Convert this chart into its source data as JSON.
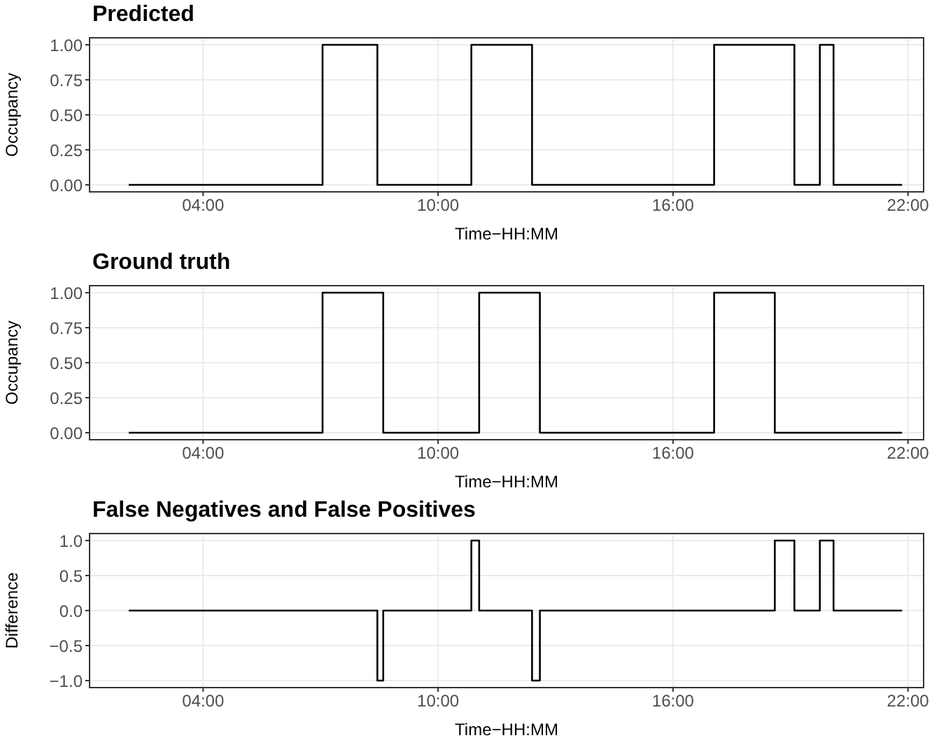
{
  "chart_data": [
    {
      "type": "step",
      "title": "Predicted",
      "xlabel": "Time−HH:MM",
      "ylabel": "Occupancy",
      "x": [
        2.1,
        7.05,
        8.45,
        10.85,
        12.4,
        17.05,
        19.1,
        19.75,
        20.1,
        21.85
      ],
      "values": [
        0,
        1,
        0,
        1,
        0,
        1,
        0,
        1,
        0,
        0
      ],
      "color": "#000000",
      "xlim": [
        1.1,
        22.4
      ],
      "xticks": [
        {
          "value": 4,
          "label": "04:00"
        },
        {
          "value": 10,
          "label": "10:00"
        },
        {
          "value": 16,
          "label": "16:00"
        },
        {
          "value": 22,
          "label": "22:00"
        }
      ],
      "ylim": [
        -0.05,
        1.05
      ],
      "yticks": [
        {
          "value": 0,
          "label": "0.00"
        },
        {
          "value": 0.25,
          "label": "0.25"
        },
        {
          "value": 0.5,
          "label": "0.50"
        },
        {
          "value": 0.75,
          "label": "0.75"
        },
        {
          "value": 1,
          "label": "1.00"
        }
      ],
      "grid": true
    },
    {
      "type": "step",
      "title": "Ground truth",
      "xlabel": "Time−HH:MM",
      "ylabel": "Occupancy",
      "x": [
        2.1,
        7.05,
        8.6,
        11.05,
        12.6,
        17.05,
        18.6,
        21.85
      ],
      "values": [
        0,
        1,
        0,
        1,
        0,
        1,
        0,
        0
      ],
      "color": "#000000",
      "xlim": [
        1.1,
        22.4
      ],
      "xticks": [
        {
          "value": 4,
          "label": "04:00"
        },
        {
          "value": 10,
          "label": "10:00"
        },
        {
          "value": 16,
          "label": "16:00"
        },
        {
          "value": 22,
          "label": "22:00"
        }
      ],
      "ylim": [
        -0.05,
        1.05
      ],
      "yticks": [
        {
          "value": 0,
          "label": "0.00"
        },
        {
          "value": 0.25,
          "label": "0.25"
        },
        {
          "value": 0.5,
          "label": "0.50"
        },
        {
          "value": 0.75,
          "label": "0.75"
        },
        {
          "value": 1,
          "label": "1.00"
        }
      ],
      "grid": true
    },
    {
      "type": "step",
      "title": "False Negatives and False Positives",
      "xlabel": "Time−HH:MM",
      "ylabel": "Difference",
      "x": [
        2.1,
        8.45,
        8.6,
        10.85,
        11.05,
        12.4,
        12.6,
        18.6,
        19.1,
        19.75,
        20.1,
        21.85
      ],
      "values": [
        0,
        -1,
        0,
        1,
        0,
        -1,
        0,
        1,
        0,
        1,
        0,
        0
      ],
      "color": "#000000",
      "xlim": [
        1.1,
        22.4
      ],
      "xticks": [
        {
          "value": 4,
          "label": "04:00"
        },
        {
          "value": 10,
          "label": "10:00"
        },
        {
          "value": 16,
          "label": "16:00"
        },
        {
          "value": 22,
          "label": "22:00"
        }
      ],
      "ylim": [
        -1.1,
        1.1
      ],
      "yticks": [
        {
          "value": -1,
          "label": "−1.0"
        },
        {
          "value": -0.5,
          "label": "−0.5"
        },
        {
          "value": 0,
          "label": "0.0"
        },
        {
          "value": 0.5,
          "label": "0.5"
        },
        {
          "value": 1,
          "label": "1.0"
        }
      ],
      "grid": true
    }
  ]
}
